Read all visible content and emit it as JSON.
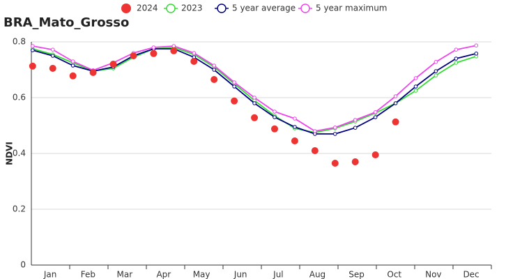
{
  "chart_data": {
    "type": "line",
    "title": "BRA_Mato_Grosso",
    "y_label": "NDVI",
    "xlim": [
      0,
      365
    ],
    "xticks": [
      {
        "value": 15,
        "label": "Jan"
      },
      {
        "value": 45,
        "label": "Feb"
      },
      {
        "value": 74,
        "label": "Mar"
      },
      {
        "value": 105,
        "label": "Apr"
      },
      {
        "value": 135,
        "label": "May"
      },
      {
        "value": 166,
        "label": "Jun"
      },
      {
        "value": 196,
        "label": "Jul"
      },
      {
        "value": 227,
        "label": "Aug"
      },
      {
        "value": 258,
        "label": "Sep"
      },
      {
        "value": 288,
        "label": "Oct"
      },
      {
        "value": 319,
        "label": "Nov"
      },
      {
        "value": 349,
        "label": "Dec"
      }
    ],
    "ylim": [
      0,
      0.8
    ],
    "yticks": [
      0,
      0.2,
      0.4,
      0.6,
      0.8
    ],
    "grid": true,
    "x": [
      1,
      17,
      33,
      49,
      65,
      81,
      97,
      113,
      129,
      145,
      161,
      177,
      193,
      209,
      225,
      241,
      257,
      273,
      289,
      305,
      321,
      337,
      353
    ],
    "series": [
      {
        "name": "2024",
        "color": "#ee3333",
        "mode": "markers",
        "values": [
          0.713,
          0.705,
          0.678,
          0.69,
          0.72,
          0.75,
          0.758,
          0.768,
          0.73,
          0.665,
          0.588,
          0.528,
          0.488,
          0.445,
          0.41,
          0.365,
          0.37,
          0.395,
          0.513,
          null,
          null,
          null,
          null
        ]
      },
      {
        "name": "2023",
        "color": "#33dd33",
        "mode": "lines+markers",
        "values": [
          0.775,
          0.755,
          0.725,
          0.695,
          0.705,
          0.745,
          0.775,
          0.78,
          0.755,
          0.71,
          0.65,
          0.59,
          0.535,
          0.49,
          0.475,
          0.49,
          0.515,
          0.545,
          0.58,
          0.625,
          0.68,
          0.725,
          0.748
        ]
      },
      {
        "name": "5 year average",
        "color": "#000080",
        "mode": "lines+markers",
        "values": [
          0.77,
          0.75,
          0.715,
          0.695,
          0.71,
          0.75,
          0.775,
          0.775,
          0.745,
          0.7,
          0.64,
          0.58,
          0.53,
          0.495,
          0.47,
          0.47,
          0.492,
          0.53,
          0.58,
          0.64,
          0.695,
          0.74,
          0.758
        ]
      },
      {
        "name": "5 year maximum",
        "color": "#ee44ee",
        "mode": "lines+markers",
        "values": [
          0.785,
          0.772,
          0.73,
          0.698,
          0.725,
          0.76,
          0.78,
          0.785,
          0.76,
          0.715,
          0.655,
          0.6,
          0.55,
          0.525,
          0.48,
          0.493,
          0.52,
          0.548,
          0.605,
          0.67,
          0.728,
          0.772,
          0.787
        ]
      }
    ]
  }
}
